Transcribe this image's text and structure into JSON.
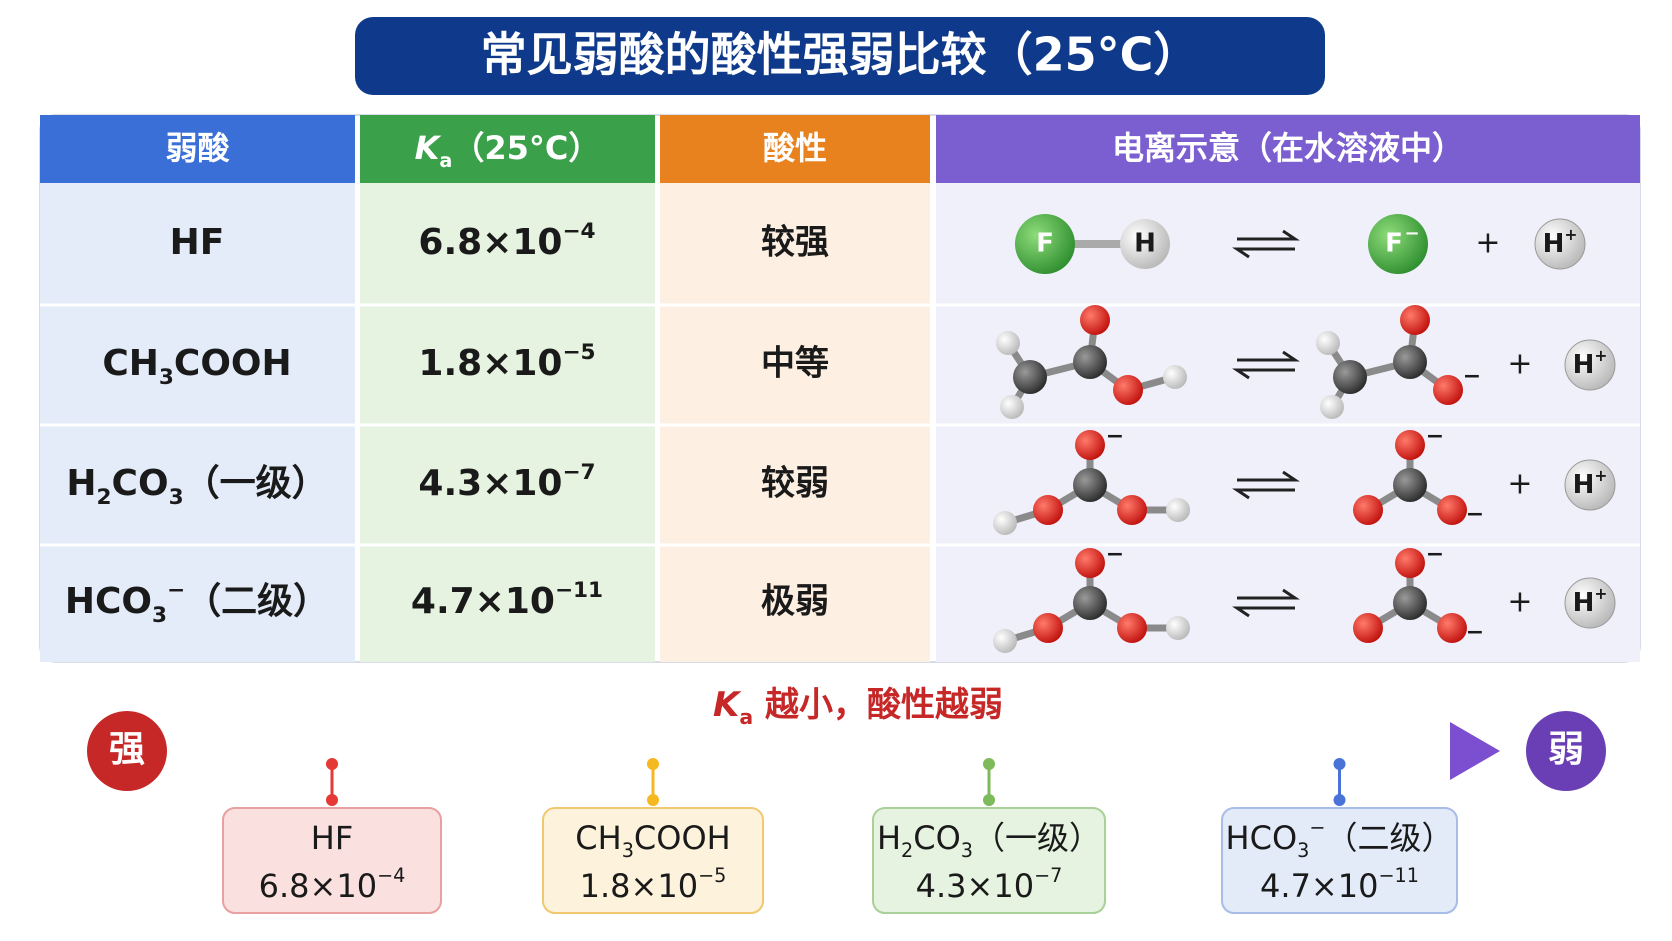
{
  "title": "常见弱酸的酸性强弱比较（25°C）",
  "table": {
    "headers": [
      [
        {
          "t": "弱酸"
        }
      ],
      [
        {
          "i": "K"
        },
        {
          "sub": "a"
        },
        {
          "t": "（25°C）"
        }
      ],
      [
        {
          "t": "酸性"
        }
      ],
      [
        {
          "t": "电离示意（在水溶液中）"
        }
      ]
    ],
    "rows": [
      {
        "acid": [
          {
            "t": "HF"
          }
        ],
        "ka": [
          {
            "t": "6.8×10"
          },
          {
            "sup": "−4"
          }
        ],
        "acidity": "较强",
        "ionization": {
          "reactant_text": [
            "F",
            "H"
          ],
          "product_text": [
            "F",
            "−"
          ],
          "plus": "+",
          "proton": [
            {
              "t": "H"
            },
            {
              "sup": "+"
            }
          ]
        }
      },
      {
        "acid": [
          {
            "t": "CH"
          },
          {
            "sub": "3"
          },
          {
            "t": "COOH"
          }
        ],
        "ka": [
          {
            "t": "1.8×10"
          },
          {
            "sup": "−5"
          }
        ],
        "acidity": "中等",
        "ionization": {
          "product_text": [
            "−"
          ],
          "plus": "+",
          "proton": [
            {
              "t": "H"
            },
            {
              "sup": "+"
            }
          ]
        }
      },
      {
        "acid": [
          {
            "t": "H"
          },
          {
            "sub": "2"
          },
          {
            "t": "CO"
          },
          {
            "sub": "3"
          },
          {
            "t": "（一级）"
          }
        ],
        "ka": [
          {
            "t": "4.3×10"
          },
          {
            "sup": "−7"
          }
        ],
        "acidity": "较弱",
        "ionization": {
          "reactant_text": [
            "−"
          ],
          "product_text": [
            "−",
            "−"
          ],
          "plus": "+",
          "proton": [
            {
              "t": "H"
            },
            {
              "sup": "+"
            }
          ]
        }
      },
      {
        "acid": [
          {
            "t": "HCO"
          },
          {
            "sub": "3"
          },
          {
            "sup": "−"
          },
          {
            "t": "（二级）"
          }
        ],
        "ka": [
          {
            "t": "4.7×10"
          },
          {
            "sup": "−11"
          }
        ],
        "acidity": "极弱",
        "ionization": {
          "reactant_text": [
            "−"
          ],
          "product_text": [
            "−",
            "−"
          ],
          "plus": "+",
          "proton": [
            {
              "t": "H"
            },
            {
              "sup": "+"
            }
          ]
        }
      }
    ]
  },
  "scale": {
    "label": [
      {
        "i": "K"
      },
      {
        "sub": "a"
      },
      {
        "t": " 越小，酸性越弱"
      }
    ],
    "strong": "强",
    "weak": "弱"
  }
}
